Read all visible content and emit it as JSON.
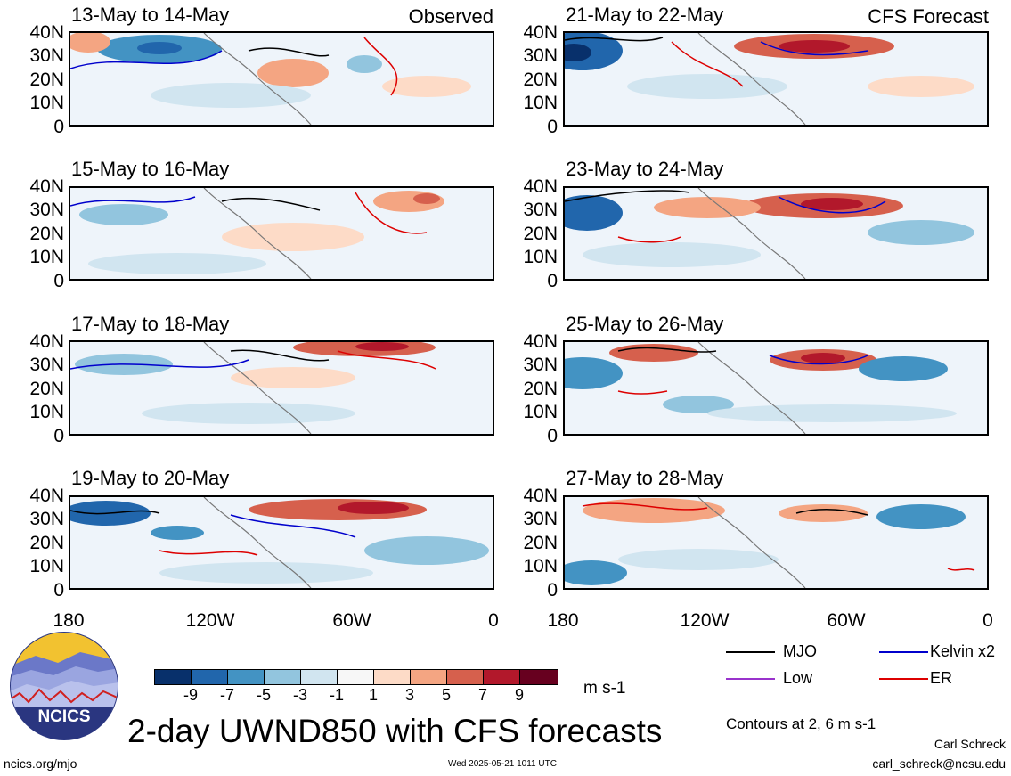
{
  "panels": [
    {
      "title": "13-May to 14-May",
      "tag": "Observed"
    },
    {
      "title": "15-May to 16-May",
      "tag": ""
    },
    {
      "title": "17-May to 18-May",
      "tag": ""
    },
    {
      "title": "19-May to 20-May",
      "tag": ""
    },
    {
      "title": "21-May to 22-May",
      "tag": "CFS Forecast"
    },
    {
      "title": "23-May to 24-May",
      "tag": ""
    },
    {
      "title": "25-May to 26-May",
      "tag": ""
    },
    {
      "title": "27-May to 28-May",
      "tag": ""
    }
  ],
  "lat_labels": [
    "40N",
    "30N",
    "20N",
    "10N",
    "0"
  ],
  "lon_labels": [
    "180",
    "120W",
    "60W",
    "0"
  ],
  "colorbar": {
    "labels": [
      "-9",
      "-7",
      "-5",
      "-3",
      "-1",
      "1",
      "3",
      "5",
      "7",
      "9"
    ],
    "colors": [
      "#08306b",
      "#2166ac",
      "#4393c3",
      "#92c5de",
      "#d1e5f0",
      "#f7f7f7",
      "#fddbc7",
      "#f4a582",
      "#d6604d",
      "#b2182b",
      "#67001f"
    ],
    "units": "m s-1"
  },
  "legend": [
    {
      "label": "MJO",
      "color": "#000000"
    },
    {
      "label": "Kelvin x2",
      "color": "#0000cc"
    },
    {
      "label": "Low",
      "color": "#9933cc"
    },
    {
      "label": "ER",
      "color": "#dd0000"
    }
  ],
  "logo_text": "NCICS",
  "main_title": "2-day UWND850 with CFS forecasts",
  "contours_note": "Contours at 2, 6 m s-1",
  "url": "ncics.org/mjo",
  "timestamp": "Wed 2025-05-21 1011 UTC",
  "author": "Carl Schreck",
  "email": "carl_schreck@ncsu.edu"
}
